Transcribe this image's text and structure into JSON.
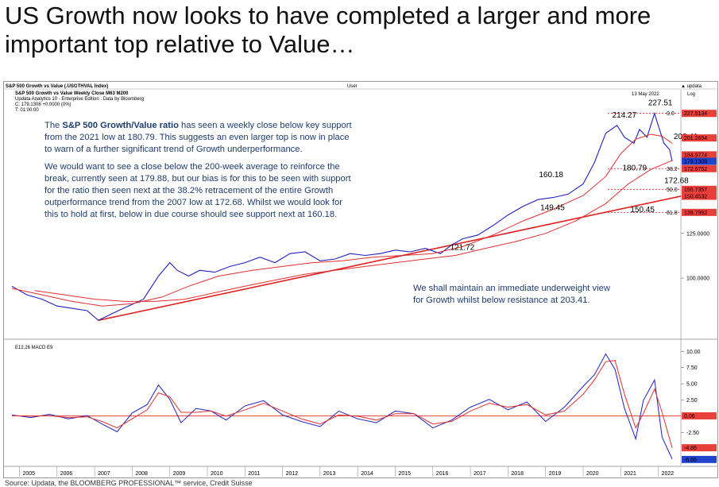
{
  "headline": "US Growth now looks to have completed a larger and more important top relative to Value…",
  "header": {
    "title_line": "S&P 500 Growth vs Value (.USGTHVAL Index)",
    "user_label": "User",
    "brand": "updata",
    "subtitle": "S&P 500 Growth vs Value Weekly Close  M63    M200",
    "edition": "Updata Analytics 10 - Enterprise Edition : Data by Bloomberg",
    "readout_c": "C: 179.1308  +0.0000 (0%)",
    "readout_t": "T: 01:00:00",
    "date": "13 May 2022",
    "scale": "Log"
  },
  "notes": {
    "p1_pre": "The ",
    "p1_bold": "S&P 500 Growth/Value ratio",
    "p1_post_lines": [
      " has seen a weekly close below key support",
      "from the 2021 low at 180.79. This suggests an even larger top is now in place",
      "to warn of a further significant trend of Growth underperformance."
    ],
    "p2_lines": [
      "We would want to see a close below the 200-week average to reinforce the",
      "break, currently seen at 179.88, but our bias is for this to be seen with support",
      "for the ratio then seen next at the 38.2% retracement of the entire Growth",
      "outperformance trend from the 2007 low at 172.68. Whilst we would look for",
      "this to hold at first, below in due course should see support next at 160.18."
    ],
    "p3_lines": [
      "We shall maintain an immediate underweight view",
      "for Growth whilst below resistance at 203.41."
    ]
  },
  "macd_label": "E12,26 MACD    E9",
  "footer": "Source: Updata, the BLOOMBERG PROFESSIONAL™ service, Credit Suisse",
  "colors": {
    "price": "#2020c0",
    "ma": "#e03030",
    "trend": "#e02020",
    "fib": "#e02020",
    "badge_red": "#e8403a",
    "badge_blue": "#2244cc"
  },
  "chart_data": [
    {
      "type": "line",
      "scale": "log",
      "title": "S&P 500 Growth vs Value (.USGTHVAL Index)",
      "x_ticks": [
        "2005",
        "2006",
        "2007",
        "2008",
        "2009",
        "2010",
        "2011",
        "2012",
        "2013",
        "2014",
        "2015",
        "2016",
        "2017",
        "2018",
        "2019",
        "2020",
        "2021",
        "2022"
      ],
      "y_ticks": [
        "125.0000",
        "100.0000"
      ],
      "xlim": [
        2004.8,
        2022.6
      ],
      "ylim": [
        74,
        246
      ],
      "series": [
        {
          "x": [
            2004.8,
            2005.2,
            2005.6,
            2006.0,
            2006.4,
            2006.8,
            2007.1,
            2007.5,
            2007.9,
            2008.3,
            2008.7,
            2009.0,
            2009.2,
            2009.5,
            2009.8,
            2010.2,
            2010.6,
            2011.0,
            2011.4,
            2011.8,
            2012.2,
            2012.6,
            2013.0,
            2013.4,
            2013.8,
            2014.2,
            2014.6,
            2015.0,
            2015.4,
            2015.8,
            2016.2,
            2016.5,
            2016.8,
            2017.2,
            2017.6,
            2018.0,
            2018.4,
            2018.8,
            2019.2,
            2019.6,
            2020.0,
            2020.3,
            2020.6,
            2020.9,
            2021.1,
            2021.35,
            2021.5,
            2021.7,
            2021.9,
            2022.0,
            2022.15,
            2022.3,
            2022.37
          ],
          "values": [
            96,
            92,
            90,
            87,
            86,
            85,
            81,
            84,
            87,
            90,
            101,
            108,
            104,
            101,
            104,
            103,
            106,
            108,
            111,
            108,
            113,
            114,
            109,
            110,
            113,
            112,
            113,
            115,
            114,
            116,
            113,
            118,
            121.7,
            124,
            130,
            137,
            143,
            148,
            149.5,
            152,
            160,
            178,
            206,
            214.3,
            202,
            196,
            210,
            202,
            227.5,
            214,
            196,
            190,
            179.1
          ]
        },
        {
          "x": [
            2004.8,
            2005.6,
            2006.4,
            2007.2,
            2008.0,
            2008.8,
            2009.5,
            2010.3,
            2011.2,
            2012.0,
            2012.8,
            2013.6,
            2014.4,
            2015.2,
            2016.0,
            2016.8,
            2017.6,
            2018.4,
            2019.2,
            2020.0,
            2020.6,
            2021.0,
            2021.4,
            2021.8,
            2022.1,
            2022.37
          ],
          "values": [
            95,
            92,
            89,
            87,
            88,
            91,
            96,
            101,
            104,
            106,
            108,
            109,
            111,
            112,
            113,
            117,
            124,
            133,
            141,
            151,
            166,
            186,
            200,
            205,
            203,
            196
          ]
        },
        {
          "x": [
            2005.4,
            2006.2,
            2007.0,
            2007.8,
            2008.6,
            2009.4,
            2010.2,
            2011.0,
            2011.8,
            2012.6,
            2013.4,
            2014.2,
            2015.0,
            2015.8,
            2016.6,
            2017.4,
            2018.2,
            2019.0,
            2019.8,
            2020.6,
            2021.2,
            2021.8,
            2022.37
          ],
          "values": [
            94,
            92,
            90,
            89,
            89,
            90,
            93,
            96,
            99,
            102,
            104,
            106,
            108,
            110,
            112,
            116,
            120,
            125,
            133,
            145,
            160,
            172,
            179.9
          ]
        }
      ],
      "annotations": [
        "227.51",
        "214.27",
        "203.41",
        "180.79",
        "172.68",
        "160.18",
        "149.45",
        "150.45",
        "121.72"
      ],
      "fib_levels": [
        {
          "label": "0.0",
          "value": 227.5134
        },
        {
          "label": "38.2",
          "value": 172.6752
        },
        {
          "label": "50.0",
          "value": 155.7357
        },
        {
          "label": "61.8",
          "value": 138.7962
        }
      ],
      "axis_badges": [
        {
          "text": "227.5134",
          "value": 227.5134,
          "color": "#e8403a"
        },
        {
          "text": "201.2694",
          "value": 201.2694,
          "color": "#e8403a"
        },
        {
          "text": "184.9774",
          "value": 184.9774,
          "color": "#e8403a"
        },
        {
          "text": "179.1308",
          "value": 179.1308,
          "color": "#2244cc"
        },
        {
          "text": "172.6752",
          "value": 172.6752,
          "color": "#e8403a"
        },
        {
          "text": "155.7357",
          "value": 155.7357,
          "color": "#e8403a"
        },
        {
          "text": "150.4532",
          "value": 150.4532,
          "color": "#e8403a"
        },
        {
          "text": "138.7962",
          "value": 138.7962,
          "color": "#e8403a"
        }
      ],
      "trend_line": {
        "x": [
          2007.1,
          2022.37
        ],
        "values": [
          81,
          150.5
        ]
      }
    },
    {
      "type": "line",
      "title": "E12,26 MACD    E9",
      "y_ticks": [
        "10.00",
        "7.50",
        "5.00",
        "2.50",
        "-2.50"
      ],
      "ylim": [
        -7.6,
        11.5
      ],
      "zero_line": 0.06,
      "series": [
        {
          "x": [
            2004.8,
            2005.3,
            2005.8,
            2006.3,
            2006.8,
            2007.2,
            2007.6,
            2008.0,
            2008.4,
            2008.7,
            2009.0,
            2009.3,
            2009.7,
            2010.1,
            2010.5,
            2011.0,
            2011.5,
            2012.0,
            2012.5,
            2013.0,
            2013.5,
            2014.0,
            2014.5,
            2015.0,
            2015.5,
            2016.0,
            2016.5,
            2017.0,
            2017.5,
            2018.0,
            2018.5,
            2019.0,
            2019.5,
            2020.0,
            2020.3,
            2020.6,
            2020.85,
            2021.1,
            2021.4,
            2021.6,
            2021.9,
            2022.1,
            2022.37
          ],
          "values": [
            0.2,
            -0.2,
            0.3,
            -0.4,
            0.1,
            -1.2,
            -2.4,
            0.5,
            1.8,
            4.8,
            2.6,
            -1.0,
            1.2,
            0.8,
            -0.6,
            1.6,
            2.4,
            0.2,
            -0.8,
            -1.6,
            0.8,
            -0.4,
            -1.0,
            0.8,
            0.4,
            -1.8,
            -0.6,
            1.4,
            2.6,
            1.0,
            2.2,
            -0.8,
            1.4,
            4.6,
            6.4,
            9.6,
            7.2,
            1.2,
            -3.5,
            2.4,
            5.6,
            -3.2,
            -6.6
          ]
        },
        {
          "x": [
            2004.8,
            2005.3,
            2005.8,
            2006.3,
            2006.8,
            2007.2,
            2007.6,
            2008.0,
            2008.4,
            2008.7,
            2009.0,
            2009.3,
            2009.7,
            2010.1,
            2010.5,
            2011.0,
            2011.5,
            2012.0,
            2012.5,
            2013.0,
            2013.5,
            2014.0,
            2014.5,
            2015.0,
            2015.5,
            2016.0,
            2016.5,
            2017.0,
            2017.5,
            2018.0,
            2018.5,
            2019.0,
            2019.5,
            2020.0,
            2020.3,
            2020.6,
            2020.85,
            2021.1,
            2021.4,
            2021.6,
            2021.9,
            2022.1,
            2022.37
          ],
          "values": [
            0.1,
            0.0,
            0.1,
            -0.2,
            -0.1,
            -0.8,
            -1.8,
            -0.4,
            1.0,
            3.6,
            3.0,
            0.6,
            0.6,
            0.8,
            0.0,
            1.0,
            2.0,
            0.8,
            -0.4,
            -1.2,
            0.2,
            0.0,
            -0.6,
            0.4,
            0.4,
            -1.2,
            -0.8,
            0.8,
            2.0,
            1.4,
            1.8,
            0.2,
            0.8,
            3.4,
            5.6,
            8.4,
            8.6,
            3.4,
            -1.8,
            0.4,
            4.2,
            0.6,
            -4.9
          ]
        }
      ],
      "axis_badges": [
        {
          "text": "0.06",
          "value": 0.06,
          "color": "#e8403a"
        },
        {
          "text": "-4.86",
          "value": -4.86,
          "color": "#e8403a"
        },
        {
          "text": "-6.66",
          "value": -6.66,
          "color": "#2244cc"
        }
      ]
    }
  ]
}
